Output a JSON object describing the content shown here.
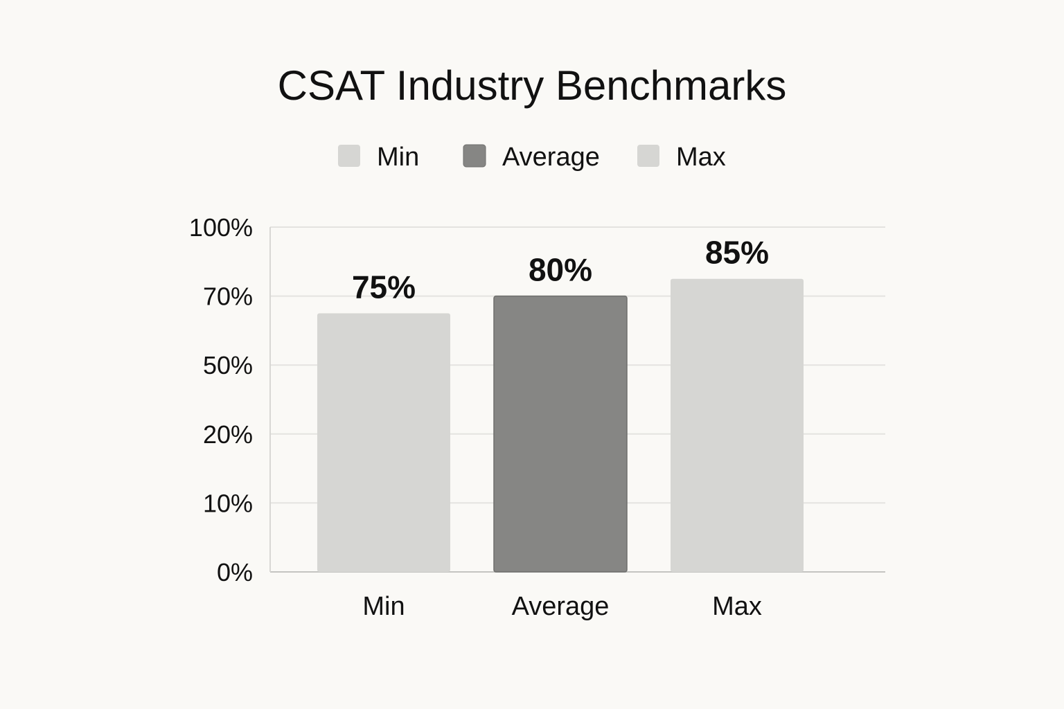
{
  "chart_data": {
    "type": "bar",
    "title": "CSAT Industry Benchmarks",
    "categories": [
      "Min",
      "Average",
      "Max"
    ],
    "values": [
      75,
      80,
      85
    ],
    "data_labels": [
      "75%",
      "80%",
      "85%"
    ],
    "legend": {
      "placement": "top-center",
      "entries": [
        {
          "name": "Min",
          "color": "#d6d6d3"
        },
        {
          "name": "Average",
          "color": "#868684"
        },
        {
          "name": "Max",
          "color": "#d6d6d3"
        }
      ]
    },
    "y_tick_labels": [
      "0%",
      "10%",
      "20%",
      "50%",
      "70%",
      "100%"
    ],
    "ylim": [
      0,
      100
    ],
    "xlabel": "",
    "ylabel": "",
    "grid": true,
    "colors": [
      "#d6d6d3",
      "#868684",
      "#d6d6d3"
    ]
  }
}
